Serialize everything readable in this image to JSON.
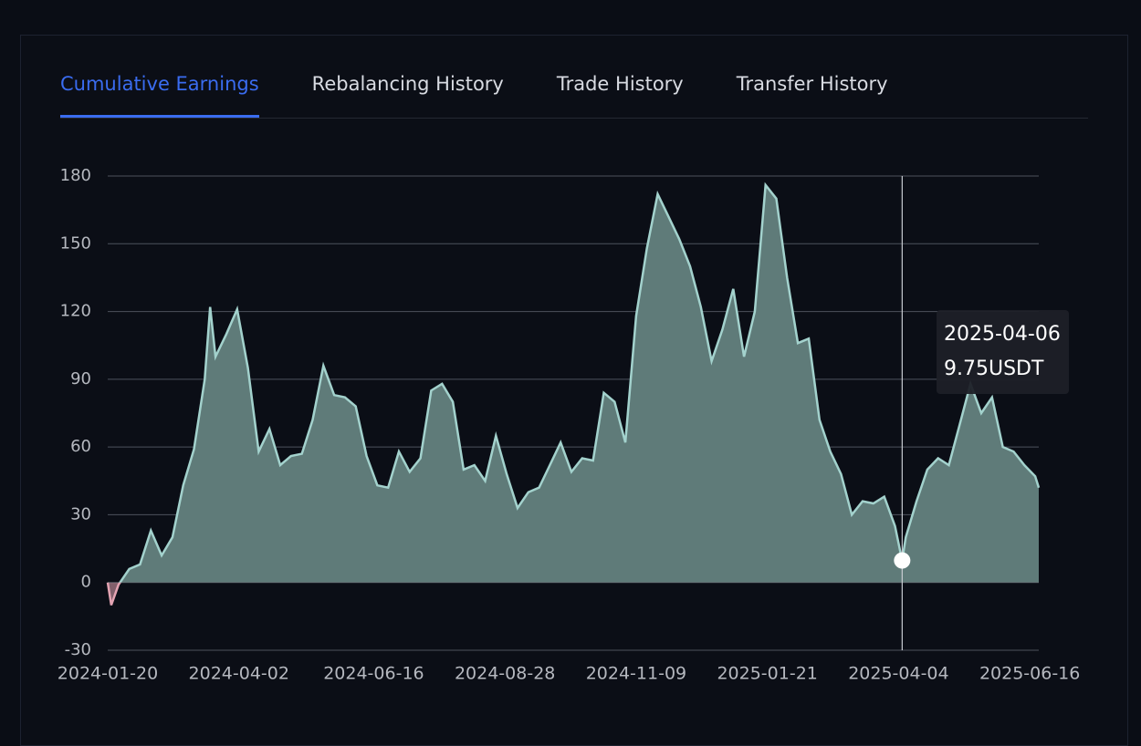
{
  "tabs": [
    "Cumulative Earnings",
    "Rebalancing History",
    "Trade History",
    "Transfer History"
  ],
  "active_tab": 0,
  "chart_data": {
    "type": "area",
    "x": [
      "2024-01-20",
      "2024-01-22",
      "2024-01-26",
      "2024-02-01",
      "2024-02-07",
      "2024-02-13",
      "2024-02-19",
      "2024-02-25",
      "2024-03-02",
      "2024-03-08",
      "2024-03-14",
      "2024-03-17",
      "2024-03-20",
      "2024-03-26",
      "2024-04-01",
      "2024-04-07",
      "2024-04-13",
      "2024-04-19",
      "2024-04-25",
      "2024-05-01",
      "2024-05-07",
      "2024-05-13",
      "2024-05-19",
      "2024-05-25",
      "2024-05-31",
      "2024-06-06",
      "2024-06-12",
      "2024-06-18",
      "2024-06-24",
      "2024-06-30",
      "2024-07-06",
      "2024-07-12",
      "2024-07-18",
      "2024-07-24",
      "2024-07-30",
      "2024-08-05",
      "2024-08-11",
      "2024-08-17",
      "2024-08-23",
      "2024-08-29",
      "2024-09-04",
      "2024-09-10",
      "2024-09-16",
      "2024-09-22",
      "2024-09-28",
      "2024-10-04",
      "2024-10-10",
      "2024-10-16",
      "2024-10-22",
      "2024-10-28",
      "2024-11-03",
      "2024-11-09",
      "2024-11-15",
      "2024-11-21",
      "2024-11-27",
      "2024-12-03",
      "2024-12-09",
      "2024-12-15",
      "2024-12-21",
      "2024-12-27",
      "2025-01-02",
      "2025-01-08",
      "2025-01-14",
      "2025-01-20",
      "2025-01-26",
      "2025-02-01",
      "2025-02-07",
      "2025-02-13",
      "2025-02-19",
      "2025-02-25",
      "2025-03-03",
      "2025-03-09",
      "2025-03-15",
      "2025-03-21",
      "2025-03-27",
      "2025-04-02",
      "2025-04-06",
      "2025-04-08",
      "2025-04-14",
      "2025-04-20",
      "2025-04-26",
      "2025-05-02",
      "2025-05-08",
      "2025-05-14",
      "2025-05-20",
      "2025-05-26",
      "2025-06-01",
      "2025-06-07",
      "2025-06-13",
      "2025-06-19",
      "2025-06-21"
    ],
    "series": [
      {
        "color": "#a3d2cd",
        "fill": "#5f7b79",
        "negative_color": "#e3a3b2",
        "values": [
          0,
          -10,
          -1,
          6,
          8,
          23,
          12,
          20,
          43,
          59,
          90,
          122,
          100,
          110,
          121,
          95,
          58,
          68,
          52,
          56,
          57,
          72,
          96,
          83,
          82,
          78,
          56,
          43,
          42,
          58,
          49,
          55,
          85,
          88,
          80,
          50,
          52,
          45,
          65,
          48,
          33,
          40,
          42,
          52,
          62,
          49,
          55,
          54,
          84,
          80,
          62,
          118,
          148,
          172,
          162,
          152,
          140,
          122,
          98,
          112,
          130,
          100,
          120,
          176,
          170,
          135,
          106,
          108,
          72,
          58,
          48,
          30,
          36,
          35,
          38,
          25,
          9.75,
          20,
          36,
          50,
          55,
          52,
          70,
          88,
          75,
          82,
          60,
          58,
          52,
          47,
          42
        ]
      }
    ],
    "xlim": [
      "2024-01-20",
      "2025-06-21"
    ],
    "xticks": [
      "2024-01-20",
      "2024-04-02",
      "2024-06-16",
      "2024-08-28",
      "2024-11-09",
      "2025-01-21",
      "2025-04-04",
      "2025-06-16"
    ],
    "ylim": [
      -30,
      180
    ],
    "yticks": [
      -30,
      0,
      30,
      60,
      90,
      120,
      150,
      180
    ],
    "grid": true,
    "tooltip": {
      "x": "2025-04-06",
      "label": "9.75USDT"
    }
  }
}
